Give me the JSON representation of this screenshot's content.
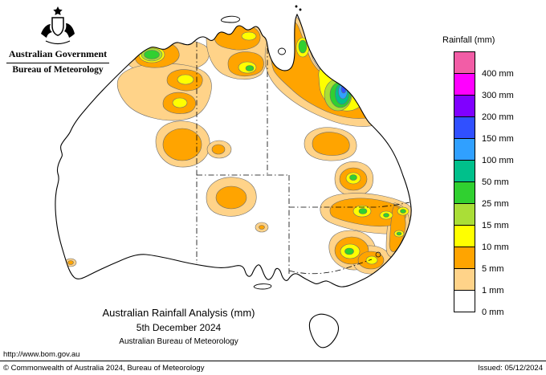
{
  "header": {
    "emblem": "commonwealth-coat-of-arms",
    "government": "Australian Government",
    "bureau": "Bureau of Meteorology"
  },
  "legend": {
    "title": "Rainfall (mm)",
    "entries": [
      {
        "label": "400 mm",
        "value": 400,
        "color": "#f25da6"
      },
      {
        "label": "300 mm",
        "value": 300,
        "color": "#ff00ff"
      },
      {
        "label": "200 mm",
        "value": 200,
        "color": "#8000ff"
      },
      {
        "label": "150 mm",
        "value": 150,
        "color": "#3050ff"
      },
      {
        "label": "100 mm",
        "value": 100,
        "color": "#30a0ff"
      },
      {
        "label": "50 mm",
        "value": 50,
        "color": "#00c08b"
      },
      {
        "label": "25 mm",
        "value": 25,
        "color": "#30d030"
      },
      {
        "label": "15 mm",
        "value": 15,
        "color": "#aade37"
      },
      {
        "label": "10 mm",
        "value": 10,
        "color": "#ffff00"
      },
      {
        "label": "5 mm",
        "value": 5,
        "color": "#ffa400"
      },
      {
        "label": "1 mm",
        "value": 1,
        "color": "#ffd389"
      },
      {
        "label": "0 mm",
        "value": 0,
        "color": "#ffffff"
      }
    ]
  },
  "map": {
    "title": "Australian Rainfall Analysis (mm)",
    "date": "5th December 2024",
    "organisation": "Australian Bureau of Meteorology",
    "url": "http://www.bom.gov.au"
  },
  "footer": {
    "copyright": "© Commonwealth of Australia 2024, Bureau of Meteorology",
    "issued": "Issued: 05/12/2024"
  }
}
